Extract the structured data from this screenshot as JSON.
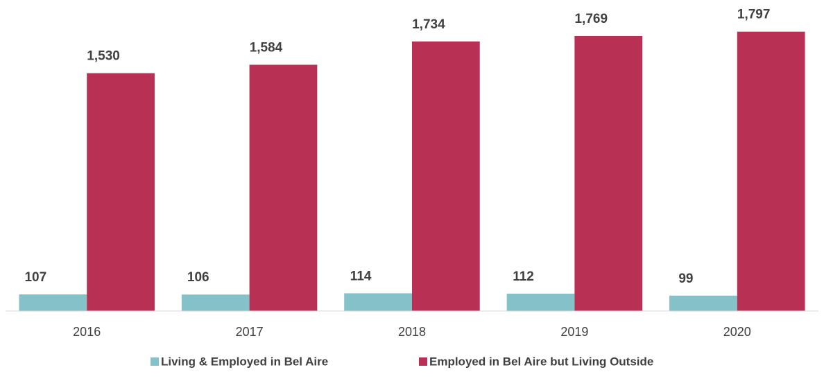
{
  "chart_data": {
    "type": "bar",
    "categories": [
      "2016",
      "2017",
      "2018",
      "2019",
      "2020"
    ],
    "series": [
      {
        "name": "Living & Employed in Bel Aire",
        "color": "#84c1c9",
        "values": [
          107,
          106,
          114,
          112,
          99
        ]
      },
      {
        "name": "Employed in Bel Aire but Living Outside",
        "color": "#b83154",
        "values": [
          1530,
          1584,
          1734,
          1769,
          1797
        ],
        "value_labels": [
          "1,530",
          "1,584",
          "1,734",
          "1,769",
          "1,797"
        ]
      }
    ],
    "ylim": [
      0,
      1800
    ],
    "grid": false,
    "legend": "bottom"
  }
}
